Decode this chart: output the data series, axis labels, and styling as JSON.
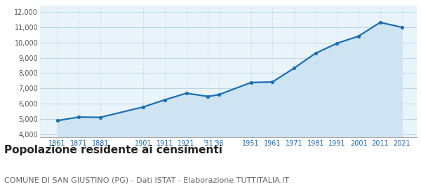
{
  "years": [
    1861,
    1871,
    1881,
    1901,
    1911,
    1921,
    1931,
    1936,
    1951,
    1961,
    1971,
    1981,
    1991,
    2001,
    2011,
    2021
  ],
  "population": [
    4880,
    5120,
    5100,
    5780,
    6250,
    6680,
    6470,
    6580,
    7380,
    7420,
    8320,
    9300,
    9950,
    10420,
    11320,
    11000
  ],
  "x_tick_years": [
    1861,
    1871,
    1881,
    1901,
    1911,
    1921,
    1931,
    1936,
    1951,
    1961,
    1971,
    1981,
    1991,
    2001,
    2011,
    2021
  ],
  "x_tick_labels": [
    "1861",
    "1871",
    "1881",
    "1901",
    "1911",
    "1921",
    "'31",
    "'36",
    "1951",
    "1961",
    "1971",
    "1981",
    "1991",
    "2001",
    "2011",
    "2021"
  ],
  "yticks": [
    4000,
    5000,
    6000,
    7000,
    8000,
    9000,
    10000,
    11000,
    12000
  ],
  "ylim": [
    3800,
    12400
  ],
  "xlim": [
    1853,
    2028
  ],
  "line_color": "#1b6eb3",
  "fill_color": "#cfe4f2",
  "marker_color": "#1b6eb3",
  "grid_color": "#b8cfe0",
  "bg_color": "#e8f3fa",
  "title": "Popolazione residente ai censimenti",
  "subtitle": "COMUNE DI SAN GIUSTINO (PG) - Dati ISTAT - Elaborazione TUTTITALIA.IT",
  "title_fontsize": 11,
  "subtitle_fontsize": 8
}
